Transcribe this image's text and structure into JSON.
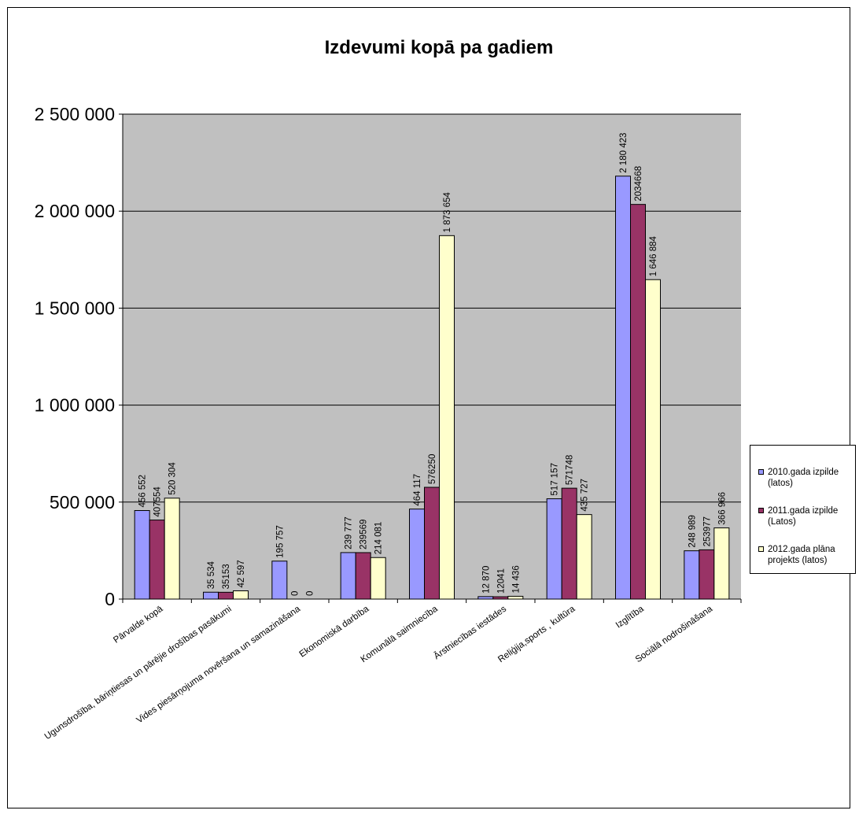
{
  "chart_data": {
    "type": "bar",
    "title": "Izdevumi kopā pa gadiem",
    "xlabel": "",
    "ylabel": "",
    "ylim": [
      0,
      2500000
    ],
    "yticks": [
      0,
      500000,
      1000000,
      1500000,
      2000000,
      2500000
    ],
    "ytick_labels": [
      "0",
      "500 000",
      "1 000 000",
      "1 500 000",
      "2 000 000",
      "2 500 000"
    ],
    "grid": true,
    "legend_position": "right",
    "plot_background": "#c0c0c0",
    "categories": [
      "Pārvalde kopā",
      "Ugunsdrošība, bāriņtiesas un pārējie drošības pasākumi",
      "Vides piesārņojuma novēršana un samazināšana",
      "Ekonomiskā darbība",
      "Komunālā saimniecība",
      "Ārstniecības iestādes",
      "Reliģija,sports , kultūra",
      "Izglītība",
      "Sociālā nodrošināšana"
    ],
    "series": [
      {
        "name": "2010.gada izpilde (latos)",
        "color": "#9999ff",
        "values": [
          456552,
          35534,
          195757,
          239777,
          464117,
          12870,
          517157,
          2180423,
          248989
        ],
        "labels": [
          "456 552",
          "35 534",
          "195 757",
          "239 777",
          "464 117",
          "12 870",
          "517 157",
          "2 180 423",
          "248 989"
        ]
      },
      {
        "name": "2011.gada izpilde (Latos)",
        "color": "#993366",
        "values": [
          407554,
          35153,
          0,
          239569,
          576250,
          12041,
          571748,
          2034668,
          253977
        ],
        "labels": [
          "407554",
          "35153",
          "0",
          "239569",
          "576250",
          "12041",
          "571748",
          "2034668",
          "253977"
        ]
      },
      {
        "name": "2012.gada plāna projekts (latos)",
        "color": "#ffffcc",
        "values": [
          520304,
          42597,
          0,
          214081,
          1873654,
          14436,
          435727,
          1646884,
          366966
        ],
        "labels": [
          "520 304",
          "42 597",
          "0",
          "214 081",
          "1 873 654",
          "14 436",
          "435 727",
          "1 646 884",
          "366 966"
        ]
      }
    ]
  }
}
